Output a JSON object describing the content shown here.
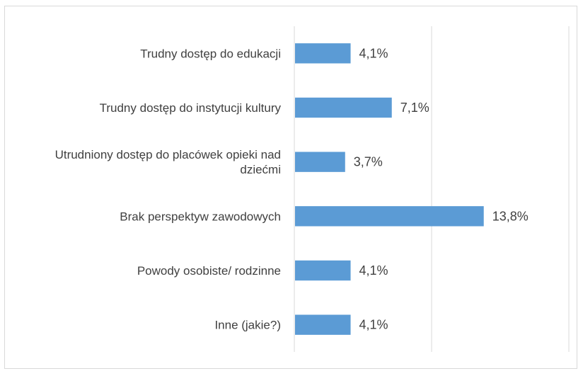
{
  "chart_data": {
    "type": "bar",
    "orientation": "horizontal",
    "categories": [
      [
        "Trudny dostęp do edukacji"
      ],
      [
        "Trudny dostęp do instytucji kultury"
      ],
      [
        "Utrudniony dostęp do placówek opieki nad",
        "dziećmi"
      ],
      [
        "Brak perspektyw zawodowych"
      ],
      [
        "Powody osobiste/ rodzinne"
      ],
      [
        "Inne (jakie?)"
      ]
    ],
    "values": [
      4.1,
      7.1,
      3.7,
      13.8,
      4.1,
      4.1
    ],
    "value_labels": [
      "4,1%",
      "7,1%",
      "3,7%",
      "13,8%",
      "4,1%",
      "4,1%"
    ],
    "xlim": [
      0,
      20
    ],
    "bar_color": "#5b9bd5",
    "grid": true,
    "title": "",
    "xlabel": "",
    "ylabel": ""
  }
}
